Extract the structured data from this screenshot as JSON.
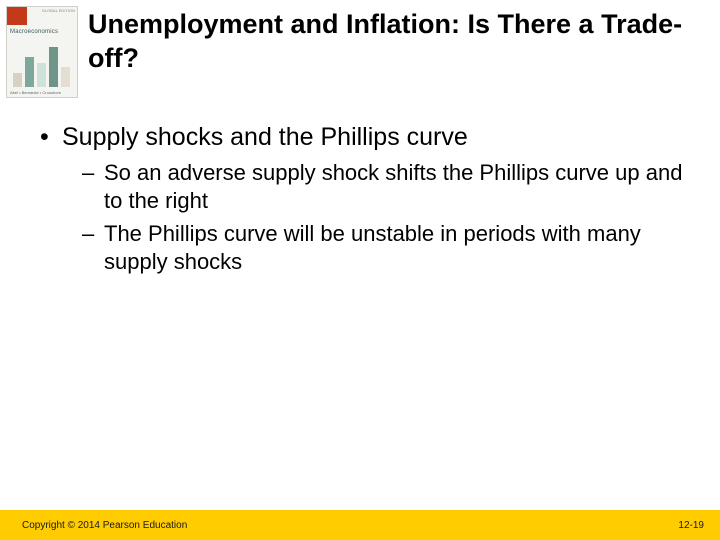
{
  "cover": {
    "label": "Macroeconomics",
    "brand": "GLOBAL EDITION",
    "author": "Abel • Bernanke • Croushore"
  },
  "title": "Unemployment and Inflation: Is There a Trade-off?",
  "bullets": {
    "lvl1": [
      {
        "text": "Supply shocks and the Phillips curve",
        "sub": [
          "So an adverse supply shock shifts the Phillips curve up and to the right",
          "The Phillips curve will be unstable in periods with many supply shocks"
        ]
      }
    ]
  },
  "footer": {
    "copyright": "Copyright © 2014 Pearson Education",
    "page": "12-19"
  },
  "colors": {
    "footer_bg": "#ffcc00",
    "text": "#000000",
    "bg": "#ffffff"
  }
}
